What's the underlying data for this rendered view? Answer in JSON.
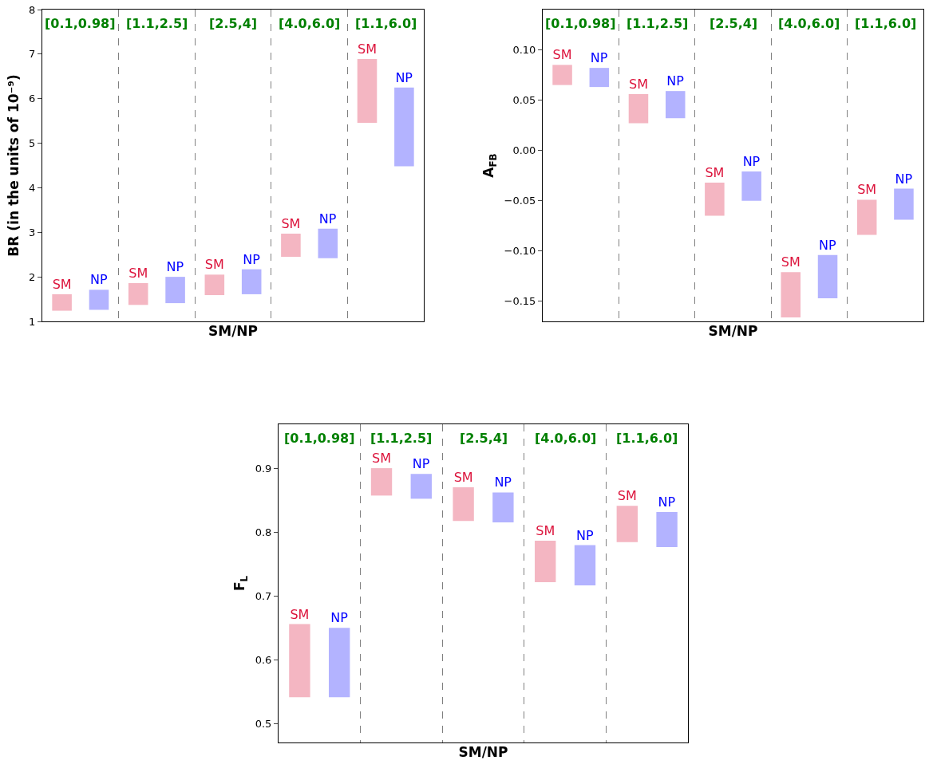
{
  "chart_data": [
    {
      "type": "bar",
      "xlabel": "SM/NP",
      "ylabel": "BR (in the units of 10⁻⁹)",
      "categories": [
        "[0.1,0.98]",
        "[1.1,2.5]",
        "[2.5,4]",
        "[4.0,6.0]",
        "[1.1,6.0]"
      ],
      "grid": "x",
      "ylim": [
        1,
        8
      ],
      "yticks": [
        1,
        2,
        3,
        4,
        5,
        6,
        7,
        8
      ],
      "series": [
        {
          "name": "SM",
          "color": "#f4b6c2",
          "base": [
            1.24,
            1.37,
            1.59,
            2.45,
            5.46
          ],
          "values": [
            0.37,
            0.49,
            0.46,
            0.52,
            1.43
          ]
        },
        {
          "name": "NP",
          "color": "#b3b3ff",
          "base": [
            1.26,
            1.41,
            1.61,
            2.42,
            4.48
          ],
          "values": [
            0.45,
            0.59,
            0.56,
            0.66,
            1.77
          ]
        }
      ]
    },
    {
      "type": "bar",
      "xlabel": "SM/NP",
      "ylabel": "A$_{FB}$",
      "categories": [
        "[0.1,0.98]",
        "[1.1,2.5]",
        "[2.5,4]",
        "[4.0,6.0]",
        "[1.1,6.0]"
      ],
      "grid": "x",
      "ylim": [
        -0.17,
        0.14
      ],
      "yticks": [
        {
          "value": -0.15,
          "label": "−0.15"
        },
        {
          "value": -0.1,
          "label": "−0.10"
        },
        {
          "value": -0.05,
          "label": "−0.05"
        },
        {
          "value": 0,
          "label": "0.00"
        },
        {
          "value": 0.05,
          "label": "0.05"
        },
        {
          "value": 0.1,
          "label": "0.10"
        }
      ],
      "series": [
        {
          "name": "SM",
          "color": "#f4b6c2",
          "base": [
            0.065,
            0.027,
            -0.065,
            -0.166,
            -0.084
          ],
          "values": [
            0.02,
            0.029,
            0.033,
            0.045,
            0.035
          ]
        },
        {
          "name": "NP",
          "color": "#b3b3ff",
          "base": [
            0.063,
            0.032,
            -0.05,
            -0.147,
            -0.069
          ],
          "values": [
            0.019,
            0.027,
            0.029,
            0.043,
            0.031
          ]
        }
      ]
    },
    {
      "type": "bar",
      "xlabel": "SM/NP",
      "ylabel": "F$_{L}$",
      "categories": [
        "[0.1,0.98]",
        "[1.1,2.5]",
        "[2.5,4]",
        "[4.0,6.0]",
        "[1.1,6.0]"
      ],
      "grid": "x",
      "ylim": [
        0.47,
        0.97
      ],
      "yticks": [
        0.5,
        0.6,
        0.7,
        0.8,
        0.9
      ],
      "series": [
        {
          "name": "SM",
          "color": "#f4b6c2",
          "base": [
            0.541,
            0.858,
            0.818,
            0.722,
            0.785
          ],
          "values": [
            0.115,
            0.043,
            0.053,
            0.065,
            0.057
          ]
        },
        {
          "name": "NP",
          "color": "#b3b3ff",
          "base": [
            0.541,
            0.853,
            0.816,
            0.717,
            0.777
          ],
          "values": [
            0.109,
            0.039,
            0.047,
            0.063,
            0.055
          ]
        }
      ]
    }
  ]
}
